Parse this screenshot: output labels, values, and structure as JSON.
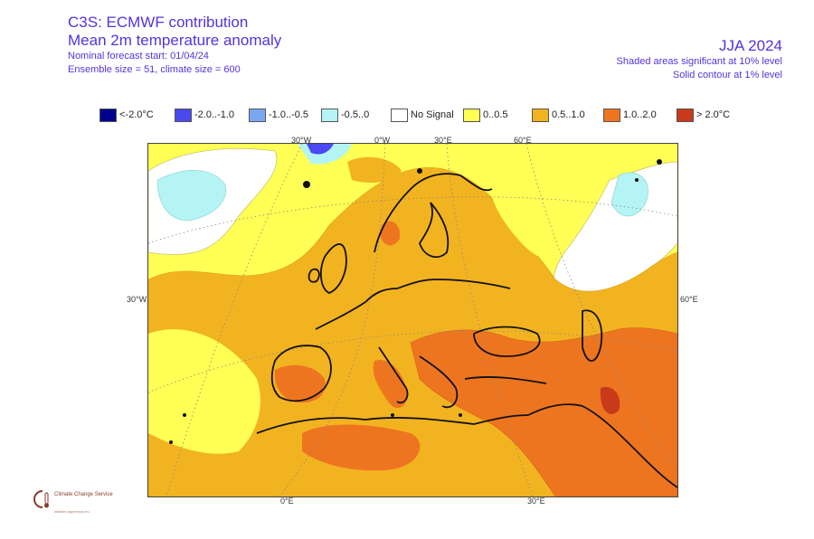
{
  "header": {
    "title1": "C3S: ECMWF contribution",
    "title2": "Mean 2m temperature anomaly",
    "forecast_start": "Nominal forecast start: 01/04/24",
    "ensemble": "Ensemble size = 51, climate size = 600",
    "season": "JJA 2024",
    "sig10": "Shaded areas significant at 10% level",
    "sig1": "Solid contour at 1% level"
  },
  "legend": [
    {
      "label": "<-2.0°C",
      "color": "#00008b"
    },
    {
      "label": "-2.0..-1.0",
      "color": "#4a4af0"
    },
    {
      "label": "-1.0..-0.5",
      "color": "#7aa8f0"
    },
    {
      "label": "-0.5..0",
      "color": "#b4f4f4"
    },
    {
      "label": "No Signal",
      "color": "#ffffff"
    },
    {
      "label": "0..0.5",
      "color": "#ffff55"
    },
    {
      "label": "0.5..1.0",
      "color": "#f2b320"
    },
    {
      "label": "1.0..2.0",
      "color": "#ee7520"
    },
    {
      "label": "> 2.0°C",
      "color": "#c83a1a"
    }
  ],
  "map_labels": {
    "lon_30w_top": "30°W",
    "lon_0_top": "0°W",
    "lon_30e_top": "30°E",
    "lon_60e_top": "60°E",
    "lat_30w_left": "30°W",
    "lat_60e_right": "60°E",
    "lon_0_bottom": "0°E",
    "lon_30e_bottom": "30°E"
  },
  "logo": {
    "name": "Climate Change Service",
    "url": "climate.copernicus.eu"
  }
}
